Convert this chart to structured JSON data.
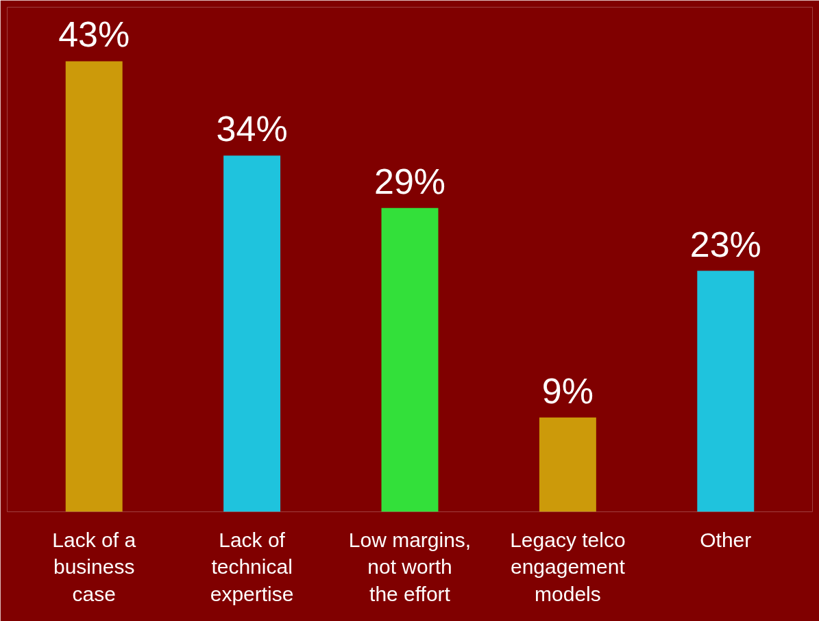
{
  "chart_data": {
    "type": "bar",
    "categories": [
      "Lack of a business case",
      "Lack of technical expertise",
      "Low margins, not worth the effort",
      "Legacy telco engagement models",
      "Other"
    ],
    "values": [
      43,
      34,
      29,
      9,
      23
    ],
    "colors": [
      "#cc9a0a",
      "#1fc3dd",
      "#33e03a",
      "#cc9a0a",
      "#1fc3dd"
    ],
    "value_labels": [
      "43%",
      "34%",
      "29%",
      "9%",
      "23%"
    ]
  }
}
